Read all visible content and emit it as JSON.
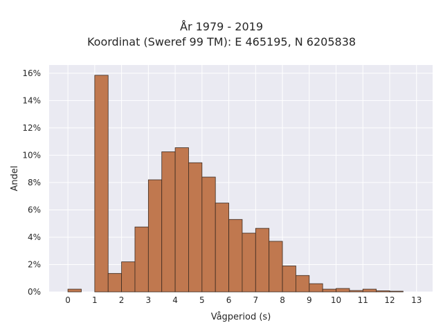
{
  "chart_data": {
    "type": "bar",
    "title": "År 1979 - 2019",
    "subtitle": "Koordinat (Sweref 99 TM): E 465195, N 6205838",
    "xlabel": "Vågperiod (s)",
    "ylabel": "Andel",
    "bin_width": 0.5,
    "bins_start": [
      0,
      0.5,
      1,
      1.5,
      2,
      2.5,
      3,
      3.5,
      4,
      4.5,
      5,
      5.5,
      6,
      6.5,
      7,
      7.5,
      8,
      8.5,
      9,
      9.5,
      10,
      10.5,
      11,
      11.5,
      12,
      12.5
    ],
    "values": [
      0.2,
      0,
      15.85,
      1.35,
      2.2,
      4.75,
      8.2,
      10.25,
      10.55,
      9.45,
      8.4,
      6.5,
      5.3,
      4.3,
      4.65,
      3.7,
      1.9,
      1.2,
      0.6,
      0.2,
      0.25,
      0.1,
      0.2,
      0.08,
      0.05,
      0
    ],
    "xlim": [
      -0.7,
      13.6
    ],
    "ylim": [
      0,
      16.6
    ],
    "x_ticks": [
      "0",
      "1",
      "2",
      "3",
      "4",
      "5",
      "6",
      "7",
      "8",
      "9",
      "10",
      "11",
      "12",
      "13"
    ],
    "y_ticks": [
      "0%",
      "2%",
      "4%",
      "6%",
      "8%",
      "10%",
      "12%",
      "14%",
      "16%"
    ],
    "grid": true,
    "colors": {
      "bar": "#c0784f",
      "bar_edge": "#3a2a20",
      "plot_bg": "#eaeaf2",
      "grid": "#ffffff"
    }
  }
}
